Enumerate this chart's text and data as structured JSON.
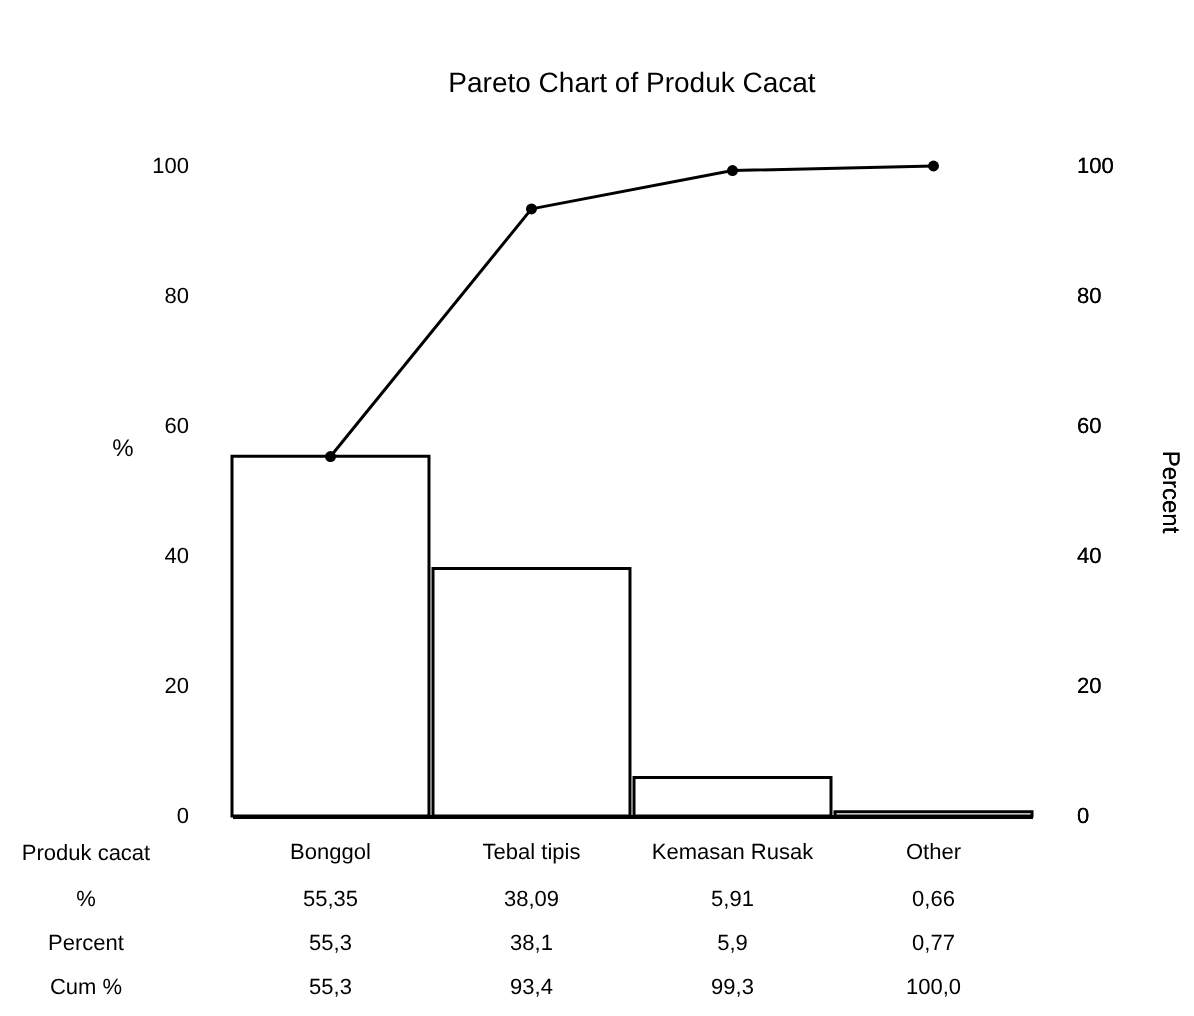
{
  "chart_data": {
    "type": "bar",
    "title": "Pareto Chart of Produk Cacat",
    "xlabel": "Produk cacat",
    "ylabel": "%",
    "y2label": "Percent",
    "categories": [
      "Bonggol",
      "Tebal tipis",
      "Kemasan Rusak",
      "Other"
    ],
    "series": [
      {
        "color": "#ffffff",
        "values": [
          55.35,
          38.09,
          5.91,
          0.66
        ],
        "value_labels": [
          "55,35",
          "38,09",
          "5,91",
          "0,66"
        ]
      },
      {
        "type": "line",
        "axis": "y2",
        "color": "#000000",
        "marker": "circle",
        "values": [
          55.3,
          93.4,
          99.3,
          100.0
        ],
        "value_labels": [
          "55,3",
          "93,4",
          "99,3",
          "100,0"
        ]
      }
    ],
    "ylim": [
      0,
      100
    ],
    "yticks": [
      0,
      20,
      40,
      60,
      80,
      100
    ],
    "y2lim": [
      0,
      100
    ],
    "y2ticks": [
      0,
      20,
      40,
      60,
      80,
      100
    ],
    "annotations": [
      "%",
      "Percent",
      "Cum %",
      "55,3",
      "38,1",
      "5,9",
      "0,77"
    ],
    "grid": false
  }
}
